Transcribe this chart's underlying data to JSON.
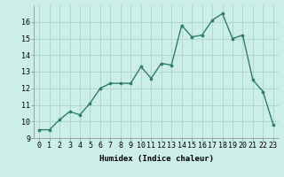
{
  "x": [
    0,
    1,
    2,
    3,
    4,
    5,
    6,
    7,
    8,
    9,
    10,
    11,
    12,
    13,
    14,
    15,
    16,
    17,
    18,
    19,
    20,
    21,
    22,
    23
  ],
  "y": [
    9.5,
    9.5,
    10.1,
    10.6,
    10.4,
    11.1,
    12.0,
    12.3,
    12.3,
    12.3,
    13.3,
    12.6,
    13.5,
    13.4,
    15.8,
    15.1,
    15.2,
    16.1,
    16.5,
    15.0,
    15.2,
    12.5,
    11.8,
    9.8
  ],
  "line_color": "#2e7d6e",
  "marker": "o",
  "markersize": 2.2,
  "linewidth": 1.0,
  "bg_color": "#cceee8",
  "grid_color": "#b0d8d0",
  "xlabel": "Humidex (Indice chaleur)",
  "xlim": [
    -0.5,
    23.5
  ],
  "ylim": [
    9,
    17
  ],
  "yticks": [
    9,
    10,
    11,
    12,
    13,
    14,
    15,
    16
  ],
  "xticks": [
    0,
    1,
    2,
    3,
    4,
    5,
    6,
    7,
    8,
    9,
    10,
    11,
    12,
    13,
    14,
    15,
    16,
    17,
    18,
    19,
    20,
    21,
    22,
    23
  ],
  "xlabel_fontsize": 6.5,
  "tick_fontsize": 6.0
}
